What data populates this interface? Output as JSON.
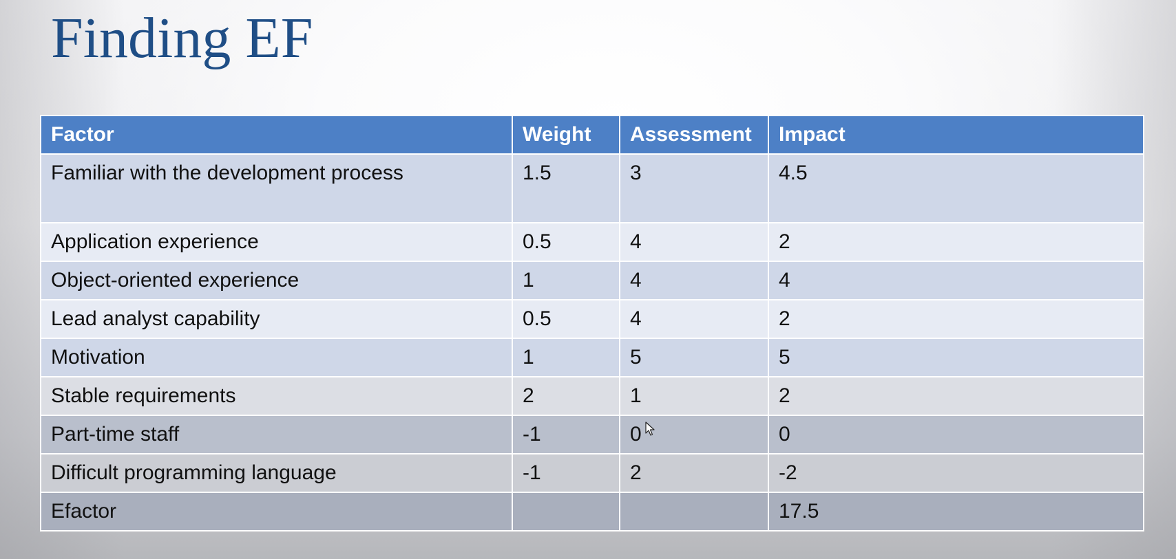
{
  "slide": {
    "title": "Finding EF"
  },
  "table": {
    "headers": [
      "Factor",
      "Weight",
      "Assessment",
      "Impact"
    ],
    "rows": [
      {
        "factor": "Familiar with the development process",
        "weight": "1.5",
        "assessment": "3",
        "impact": "4.5"
      },
      {
        "factor": "Application experience",
        "weight": "0.5",
        "assessment": "4",
        "impact": "2"
      },
      {
        "factor": "Object-oriented experience",
        "weight": "1",
        "assessment": "4",
        "impact": "4"
      },
      {
        "factor": "Lead analyst capability",
        "weight": "0.5",
        "assessment": "4",
        "impact": "2"
      },
      {
        "factor": "Motivation",
        "weight": "1",
        "assessment": "5",
        "impact": "5"
      },
      {
        "factor": "Stable requirements",
        "weight": "2",
        "assessment": "1",
        "impact": "2"
      },
      {
        "factor": "Part-time staff",
        "weight": "-1",
        "assessment": "0",
        "impact": "0"
      },
      {
        "factor": "Difficult programming language",
        "weight": "-1",
        "assessment": "2",
        "impact": "-2"
      },
      {
        "factor": "Efactor",
        "weight": "",
        "assessment": "",
        "impact": "17.5"
      }
    ]
  },
  "colors": {
    "title": "#1f4e86",
    "header_bg": "#4d80c6",
    "header_text": "#ffffff",
    "row_band_dark": "#cfd7e8",
    "row_band_light": "#e7ebf4"
  },
  "icons": {
    "cursor": "mouse-pointer-icon"
  }
}
